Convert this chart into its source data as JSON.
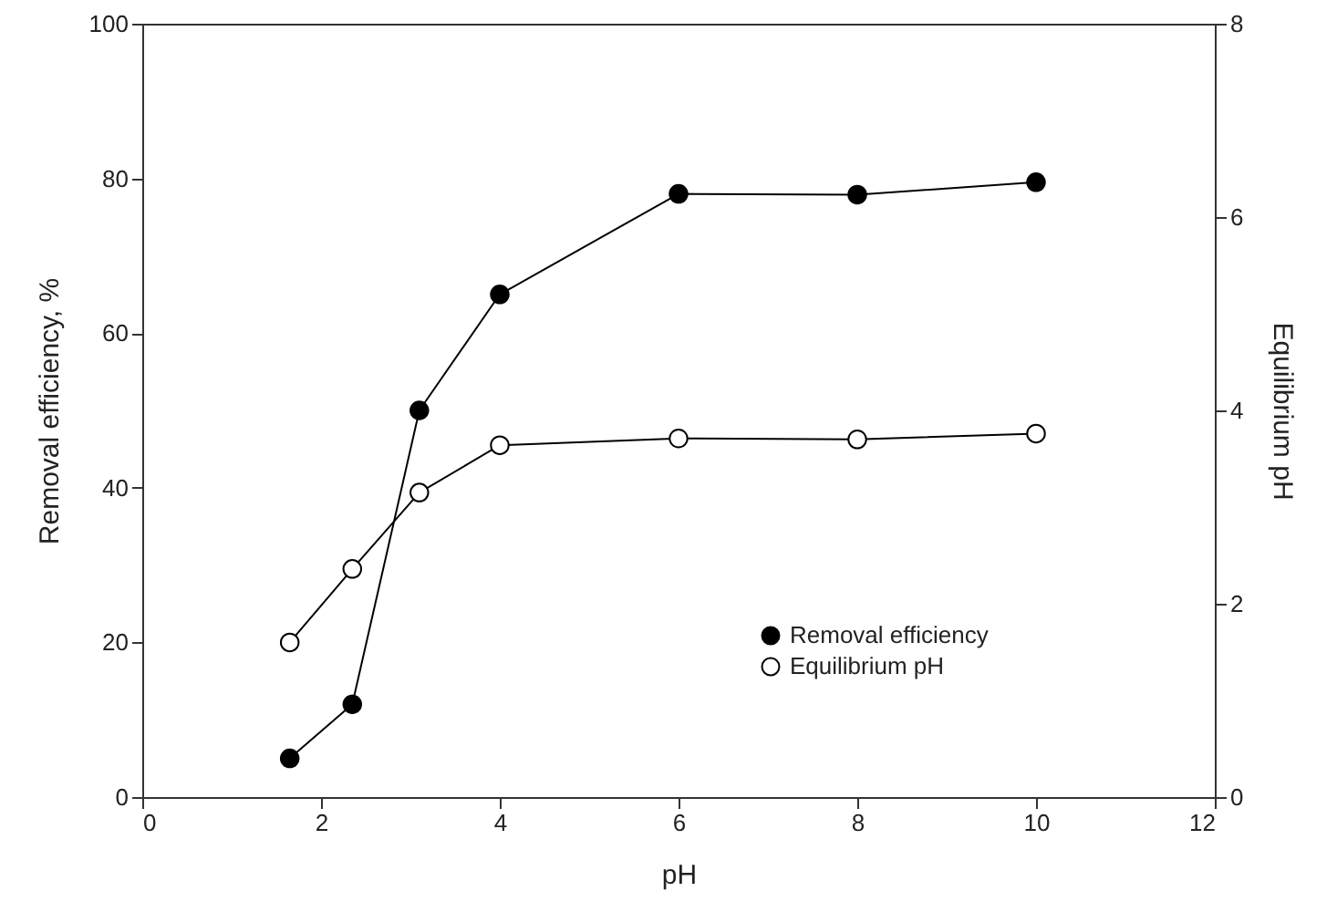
{
  "chart_data": {
    "type": "line",
    "xlabel": "pH",
    "ylabel": "Removal efficiency, %",
    "y2label": "Equilibrium pH",
    "x": [
      1.65,
      2.35,
      3.1,
      4,
      6,
      8,
      10
    ],
    "series": [
      {
        "name": "Removal efficiency",
        "color": "#000000",
        "values": [
          5,
          12,
          50,
          65,
          78,
          77.9,
          79.5
        ]
      },
      {
        "name": "Equilibrium pH",
        "color": "#000000",
        "axis": "y2",
        "values": [
          1.6,
          2.36,
          3.15,
          3.64,
          3.71,
          3.7,
          3.76
        ]
      }
    ],
    "xlim": [
      0,
      12
    ],
    "xticks": [
      0,
      2,
      4,
      6,
      8,
      10,
      12
    ],
    "ylim": [
      0,
      100
    ],
    "yticks": [
      0,
      20,
      40,
      60,
      80,
      100
    ],
    "y2lim": [
      0,
      8
    ],
    "y2ticks": [
      0,
      2,
      4,
      6,
      8
    ],
    "marker": "circle",
    "line_style": "solid",
    "grid": false,
    "legend": "bottom right"
  }
}
